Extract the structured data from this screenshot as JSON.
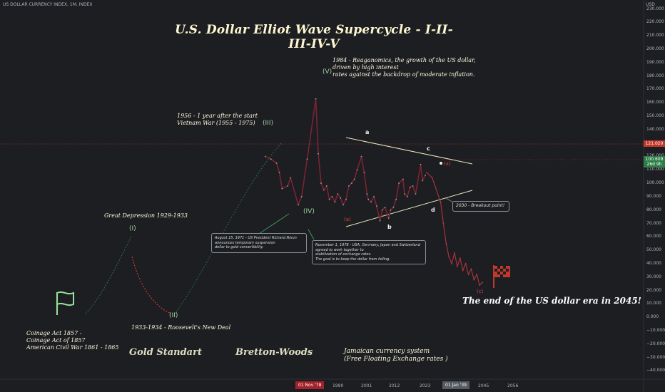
{
  "header": {
    "symbol_line": "US DOLLAR CURRENCY INDEX, 1M, INDEX",
    "currency": "USD"
  },
  "title": "U.S. Dollar Elliot Wave Supercycle - I-II-III-IV-V",
  "notes": {
    "reagan": "1984 - Reaganomics, the growth of the US dollar,\n   driven by high interest\n   rates against the backdrop of moderate inflation.",
    "vietnam": "1956 - 1 year after the start\nVietnam War (1955 - 1975)",
    "depression": "Great Depression 1929-1933",
    "roosevelt": "1933-1934 - Roosevelt's New Deal",
    "coinage": "Coinage Act 1857 -\nCoinage Act of 1857\nAmerican Civil War 1861 - 1865",
    "gold": "Gold Standart",
    "bretton": "Bretton-Woods",
    "jamaica": "Jamaican currency system\n(Free Floating Exchange rates )",
    "end": "The end of the US dollar era in 2045!"
  },
  "callouts": {
    "nixon": "August 15, 1971 - US President Richard Nixon\nannounces temporary suspension\ndollar to gold convertibility.",
    "plaza": "November 1, 1978 - USA, Germany, Japan and Switzerland\n   agreed to work together to\nstabilization of exchange rates.\nThe goal is to keep the dollar from falling.",
    "breakout": "2030 - Breakout point!"
  },
  "wave_labels": {
    "I": "(I)",
    "II": "(II)",
    "III": "(III)",
    "IV": "(IV)",
    "V": "(V)",
    "a": "a",
    "b": "b",
    "c": "c",
    "d": "d",
    "c_red": "(c)",
    "a_red": "(a)",
    "x_red": "(x)"
  },
  "chart_data": {
    "type": "line",
    "title": "U.S. Dollar Elliot Wave Supercycle - I-II-III-IV-V",
    "xlabel": "",
    "ylabel": "",
    "x_ticks": [
      "01 Nov '78",
      "1990",
      "2001",
      "2012",
      "2023",
      "01 Jan '39",
      "2045",
      "2056"
    ],
    "y_ticks": [
      230,
      220,
      210,
      200,
      190,
      180,
      170,
      160,
      150,
      140,
      130,
      120,
      110,
      100,
      90,
      80,
      70,
      60,
      50,
      40,
      30,
      20,
      10,
      0,
      -10,
      -20,
      -30,
      -40
    ],
    "ylim": [
      -43,
      233
    ],
    "current_price": "100.609",
    "current_price_sub": "26d 9h",
    "level_line": "121.020",
    "grid": false,
    "series": [
      {
        "x": [
          1967,
          1969,
          1971,
          1972,
          1973,
          1975,
          1976,
          1978.8,
          1980,
          1982,
          1985.1,
          1986,
          1987,
          1988,
          1989,
          1990,
          1991,
          1992,
          1993,
          1994,
          1995,
          1996,
          1997,
          1998,
          1999,
          2000,
          2001.5,
          2002.5,
          2003.5,
          2004,
          2005,
          2006,
          2007,
          2008.2,
          2009,
          2010,
          2011.3,
          2012,
          2013,
          2014,
          2015,
          2016.5,
          2017,
          2018,
          2019,
          2020,
          2021,
          2022.8,
          2023.5,
          2024.5
        ],
        "values": [
          120,
          118,
          115,
          108,
          96,
          98,
          104,
          84,
          90,
          118,
          163,
          122,
          100,
          95,
          98,
          88,
          90,
          86,
          92,
          89,
          84,
          88,
          98,
          100,
          103,
          110,
          120,
          108,
          92,
          88,
          86,
          90,
          83,
          72,
          80,
          82,
          74,
          80,
          82,
          88,
          100,
          103,
          92,
          90,
          97,
          98,
          92,
          114,
          102,
          106
        ]
      },
      {
        "name": "projection",
        "x": [
          2025,
          2027,
          2030,
          2031,
          2032,
          2033,
          2034,
          2035,
          2036,
          2037,
          2038,
          2039,
          2040,
          2041,
          2042,
          2043,
          2044,
          2045
        ],
        "values": [
          108,
          104,
          86,
          70,
          55,
          45,
          40,
          48,
          38,
          44,
          35,
          40,
          32,
          36,
          28,
          32,
          24,
          26
        ]
      }
    ]
  }
}
